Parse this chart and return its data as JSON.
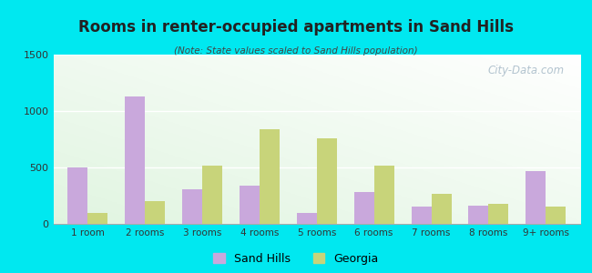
{
  "title": "Rooms in renter-occupied apartments in Sand Hills",
  "subtitle": "(Note: State values scaled to Sand Hills population)",
  "categories": [
    "1 room",
    "2 rooms",
    "3 rooms",
    "4 rooms",
    "5 rooms",
    "6 rooms",
    "7 rooms",
    "8 rooms",
    "9+ rooms"
  ],
  "sand_hills": [
    500,
    1130,
    310,
    340,
    100,
    285,
    150,
    160,
    470
  ],
  "georgia": [
    100,
    200,
    520,
    840,
    760,
    520,
    265,
    175,
    150
  ],
  "sand_hills_color": "#c9a8dc",
  "georgia_color": "#c8d47a",
  "ylim": [
    0,
    1500
  ],
  "yticks": [
    0,
    500,
    1000,
    1500
  ],
  "outer_background": "#00e8f0",
  "watermark": "City-Data.com",
  "legend_labels": [
    "Sand Hills",
    "Georgia"
  ],
  "title_color": "#222222",
  "subtitle_color": "#444444",
  "tick_label_color": "#333333"
}
